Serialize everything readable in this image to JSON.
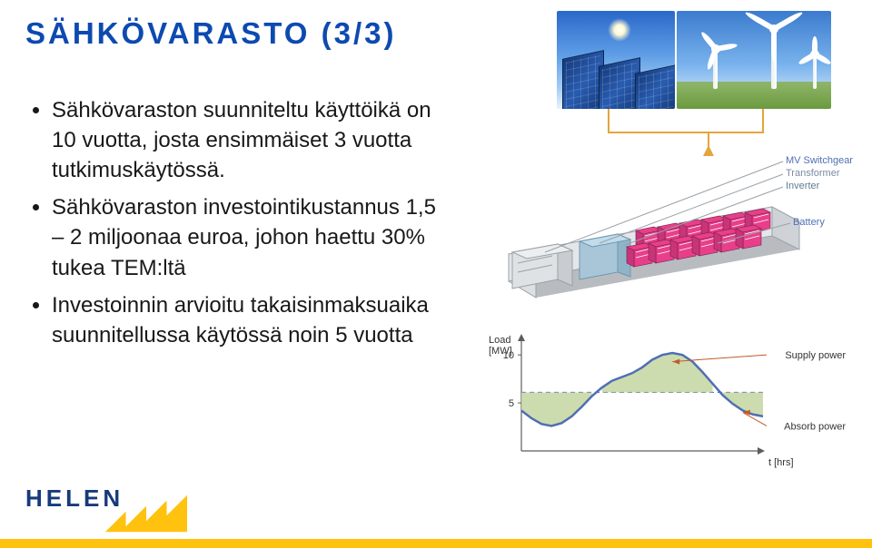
{
  "title": "SÄHKÖVARASTO (3/3)",
  "bullets": [
    "Sähkövaraston suunniteltu käyttöikä on 10 vuotta, josta ensimmäiset 3 vuotta tutkimuskäytössä.",
    "Sähkövaraston investointikustannus 1,5 – 2 miljoonaa euroa, johon haettu 30% tukea TEM:ltä",
    "Investoinnin arvioitu takaisinmaksuaika suunnitellussa käytössä noin 5 vuotta"
  ],
  "diagram_labels": {
    "mv_switchgear": {
      "text": "MV Switchgear",
      "color": "#4f6fb3"
    },
    "transformer": {
      "text": "Transformer",
      "color": "#7b8aa0"
    },
    "inverter": {
      "text": "Inverter",
      "color": "#5e7d92"
    },
    "battery": {
      "text": "Battery",
      "color": "#4f6fb3"
    }
  },
  "battery_pack": {
    "shell_color": "#cfd3d7",
    "shell_edge": "#9aa1a7",
    "floor_color": "#b8bcc0",
    "front_box_color": "#dde0e3",
    "inverter_box_color": "#a8c6d8",
    "battery_rows": 2,
    "battery_cols": 6,
    "cell_fill": "#e83f8a",
    "cell_border": "#7a1f4b",
    "cell_detail": "#ffffff"
  },
  "chart": {
    "type": "line-area",
    "x_label": "t [hrs]",
    "y_label": "Load [MW]",
    "y_ticks": [
      5,
      10
    ],
    "x_range": [
      0,
      24
    ],
    "y_range": [
      0,
      12
    ],
    "axis_color": "#5c5c5c",
    "load_curve_color": "#4f6fb3",
    "load_curve_width": 2.5,
    "area_absorb_color": "#c4d6a1",
    "area_supply_color": "#c4d6a1",
    "dashed_avg_color": "#4f6fb3",
    "avg_level": 6.1,
    "points": [
      [
        0,
        4.2
      ],
      [
        1,
        3.4
      ],
      [
        2,
        2.8
      ],
      [
        3,
        2.6
      ],
      [
        4,
        2.9
      ],
      [
        5,
        3.6
      ],
      [
        6,
        4.6
      ],
      [
        7,
        5.7
      ],
      [
        8,
        6.6
      ],
      [
        9,
        7.3
      ],
      [
        10,
        7.7
      ],
      [
        11,
        8.1
      ],
      [
        12,
        8.7
      ],
      [
        13,
        9.5
      ],
      [
        14,
        10.0
      ],
      [
        15,
        10.2
      ],
      [
        16,
        10.0
      ],
      [
        17,
        9.3
      ],
      [
        18,
        8.2
      ],
      [
        19,
        7.0
      ],
      [
        20,
        5.8
      ],
      [
        21,
        4.9
      ],
      [
        22,
        4.2
      ],
      [
        23,
        3.8
      ],
      [
        24,
        3.6
      ]
    ],
    "supply_label": "Supply power",
    "absorb_label": "Absorb power",
    "supply_arrow_color": "#c05a2a",
    "absorb_arrow_color": "#c05a2a"
  },
  "brand": {
    "name": "HELEN",
    "text_color": "#173a7a",
    "accent_color": "#ffc20e"
  }
}
